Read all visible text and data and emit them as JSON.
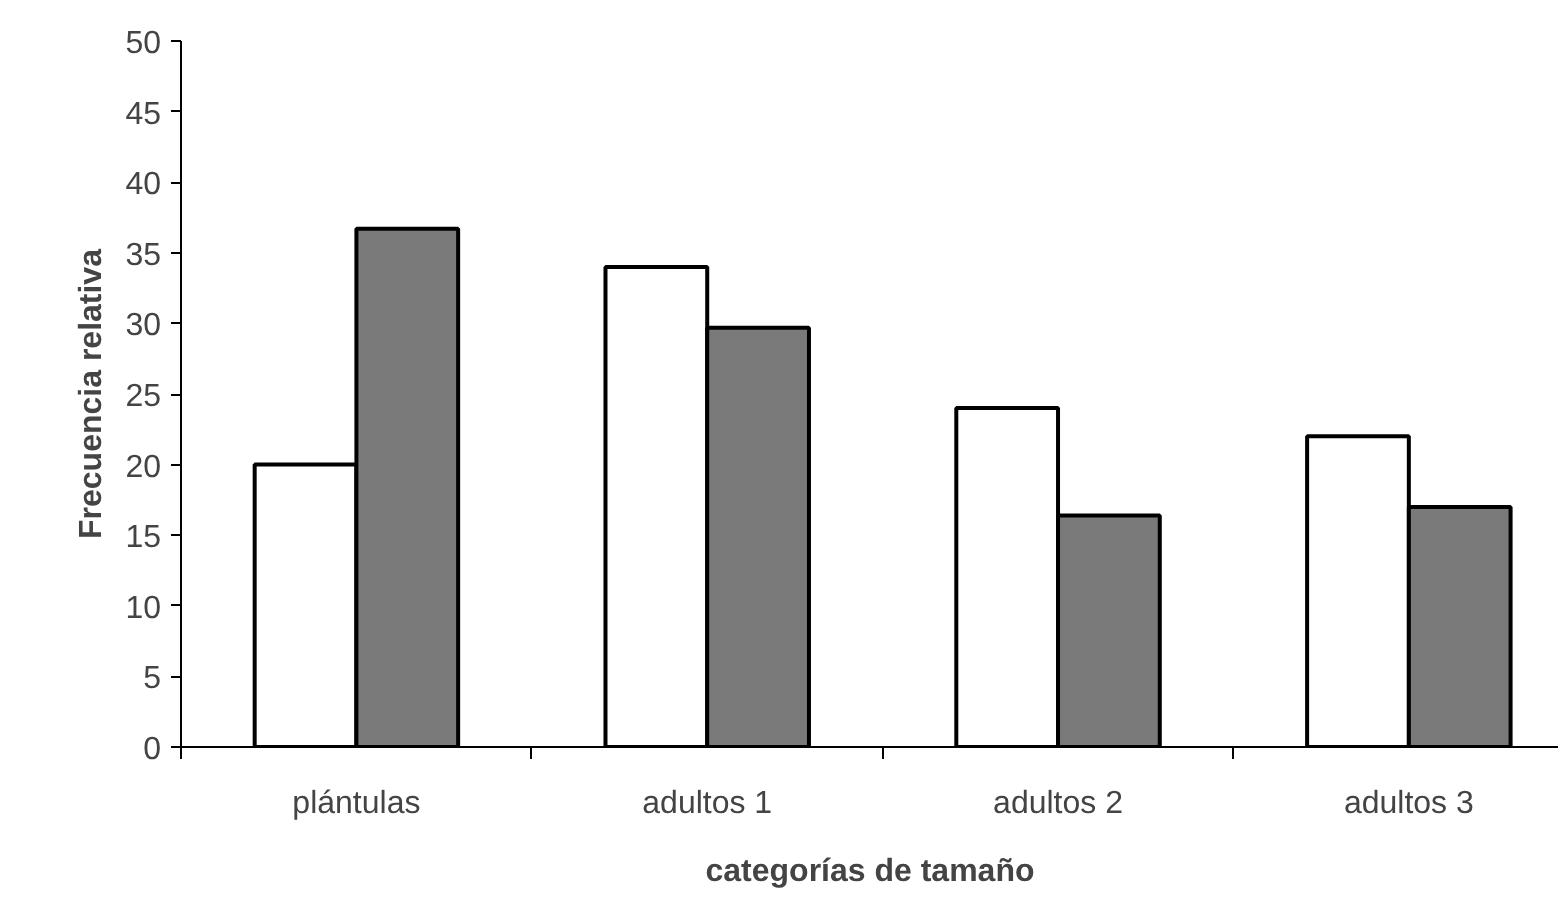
{
  "chart_data": {
    "type": "bar",
    "xlabel": "categorías de tamaño",
    "ylabel": "Frecuencia relativa",
    "categories": [
      "plántulas",
      "adultos 1",
      "adultos 2",
      "adultos 3"
    ],
    "series": [
      {
        "color": "#ffffff",
        "values": [
          20,
          34,
          24,
          22
        ]
      },
      {
        "color": "#7a7a7a",
        "values": [
          36.7,
          29.7,
          16.4,
          17.0
        ]
      }
    ],
    "ylim": [
      0,
      50
    ],
    "yticks": [
      0,
      5,
      10,
      15,
      20,
      25,
      30,
      35,
      40,
      45,
      50
    ],
    "grid": false
  }
}
